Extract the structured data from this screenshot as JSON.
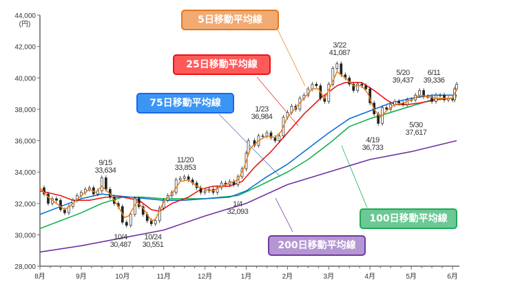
{
  "chart_data": {
    "type": "line",
    "title": "",
    "ylabel": "(円)",
    "xlabel": "",
    "ylim": [
      28000,
      44000
    ],
    "yticks": [
      "28,000",
      "30,000",
      "32,000",
      "34,000",
      "36,000",
      "38,000",
      "40,000",
      "42,000",
      "44,000"
    ],
    "ytick_values": [
      28000,
      30000,
      32000,
      34000,
      36000,
      38000,
      40000,
      42000,
      44000
    ],
    "xlim": [
      0,
      10.1
    ],
    "xticks": [
      "8月",
      "9月",
      "10月",
      "11月",
      "12月",
      "1月",
      "2月",
      "3月",
      "4月",
      "5月",
      "6月"
    ],
    "grid": false,
    "price": [
      [
        0,
        33000
      ],
      [
        0.1,
        32600
      ],
      [
        0.2,
        32000
      ],
      [
        0.3,
        32300
      ],
      [
        0.4,
        32200
      ],
      [
        0.5,
        31600
      ],
      [
        0.6,
        31400
      ],
      [
        0.7,
        31800
      ],
      [
        0.8,
        32200
      ],
      [
        0.9,
        32500
      ],
      [
        1.0,
        32700
      ],
      [
        1.1,
        32900
      ],
      [
        1.2,
        33000
      ],
      [
        1.3,
        32600
      ],
      [
        1.4,
        32800
      ],
      [
        1.5,
        33634
      ],
      [
        1.6,
        32900
      ],
      [
        1.7,
        32400
      ],
      [
        1.8,
        32000
      ],
      [
        1.9,
        31800
      ],
      [
        2.0,
        30800
      ],
      [
        2.1,
        30600
      ],
      [
        2.2,
        31300
      ],
      [
        2.3,
        32300
      ],
      [
        2.4,
        31800
      ],
      [
        2.5,
        31300
      ],
      [
        2.6,
        30900
      ],
      [
        2.7,
        30700
      ],
      [
        2.8,
        30900
      ],
      [
        2.9,
        31700
      ],
      [
        3.0,
        32200
      ],
      [
        3.1,
        32500
      ],
      [
        3.2,
        32700
      ],
      [
        3.3,
        33500
      ],
      [
        3.4,
        33600
      ],
      [
        3.5,
        33700
      ],
      [
        3.6,
        33500
      ],
      [
        3.7,
        33300
      ],
      [
        3.8,
        33000
      ],
      [
        3.9,
        32700
      ],
      [
        4.0,
        32800
      ],
      [
        4.1,
        32900
      ],
      [
        4.2,
        32700
      ],
      [
        4.3,
        33000
      ],
      [
        4.4,
        33300
      ],
      [
        4.5,
        33200
      ],
      [
        4.6,
        33400
      ],
      [
        4.7,
        33200
      ],
      [
        4.8,
        33700
      ],
      [
        4.9,
        34200
      ],
      [
        5.0,
        35200
      ],
      [
        5.05,
        36000
      ],
      [
        5.2,
        35700
      ],
      [
        5.3,
        36300
      ],
      [
        5.4,
        36300
      ],
      [
        5.5,
        36500
      ],
      [
        5.6,
        36200
      ],
      [
        5.7,
        36000
      ],
      [
        5.8,
        36300
      ],
      [
        5.9,
        37500
      ],
      [
        6.0,
        37800
      ],
      [
        6.1,
        38200
      ],
      [
        6.2,
        38000
      ],
      [
        6.3,
        38700
      ],
      [
        6.4,
        38900
      ],
      [
        6.5,
        39300
      ],
      [
        6.6,
        39600
      ],
      [
        6.7,
        39500
      ],
      [
        6.8,
        38700
      ],
      [
        6.9,
        38500
      ],
      [
        7.0,
        39600
      ],
      [
        7.1,
        40600
      ],
      [
        7.2,
        40900
      ],
      [
        7.3,
        40200
      ],
      [
        7.4,
        40000
      ],
      [
        7.5,
        39600
      ],
      [
        7.6,
        39200
      ],
      [
        7.7,
        39600
      ],
      [
        7.8,
        39500
      ],
      [
        7.9,
        39300
      ],
      [
        8.0,
        38400
      ],
      [
        8.1,
        37700
      ],
      [
        8.2,
        37100
      ],
      [
        8.3,
        38100
      ],
      [
        8.4,
        38000
      ],
      [
        8.5,
        38300
      ],
      [
        8.6,
        38500
      ],
      [
        8.7,
        38400
      ],
      [
        8.8,
        38300
      ],
      [
        8.9,
        38600
      ],
      [
        9.0,
        38600
      ],
      [
        9.1,
        38900
      ],
      [
        9.2,
        39200
      ],
      [
        9.3,
        38800
      ],
      [
        9.4,
        38800
      ],
      [
        9.5,
        38500
      ],
      [
        9.6,
        38900
      ],
      [
        9.7,
        38900
      ],
      [
        9.8,
        38600
      ],
      [
        9.9,
        38700
      ],
      [
        10.0,
        38600
      ],
      [
        10.05,
        39300
      ],
      [
        10.1,
        39600
      ]
    ],
    "series": [
      {
        "name": "5日移動平均線",
        "color": "#e8821e",
        "points": [
          [
            0,
            33000
          ],
          [
            0.2,
            32400
          ],
          [
            0.5,
            31800
          ],
          [
            0.6,
            31600
          ],
          [
            0.8,
            32000
          ],
          [
            1.0,
            32500
          ],
          [
            1.2,
            32900
          ],
          [
            1.35,
            32700
          ],
          [
            1.5,
            33100
          ],
          [
            1.7,
            32600
          ],
          [
            1.9,
            31800
          ],
          [
            2.05,
            31100
          ],
          [
            2.15,
            31200
          ],
          [
            2.35,
            32100
          ],
          [
            2.5,
            31700
          ],
          [
            2.7,
            30900
          ],
          [
            2.8,
            31000
          ],
          [
            3.0,
            32100
          ],
          [
            3.2,
            32600
          ],
          [
            3.4,
            33400
          ],
          [
            3.6,
            33500
          ],
          [
            3.8,
            33100
          ],
          [
            4.0,
            32900
          ],
          [
            4.2,
            32800
          ],
          [
            4.4,
            33100
          ],
          [
            4.6,
            33300
          ],
          [
            4.8,
            33500
          ],
          [
            4.95,
            34300
          ],
          [
            5.1,
            35500
          ],
          [
            5.3,
            36000
          ],
          [
            5.5,
            36300
          ],
          [
            5.7,
            36200
          ],
          [
            5.85,
            36600
          ],
          [
            6.0,
            37500
          ],
          [
            6.2,
            38100
          ],
          [
            6.4,
            38700
          ],
          [
            6.6,
            39300
          ],
          [
            6.75,
            39300
          ],
          [
            6.9,
            38700
          ],
          [
            7.05,
            39500
          ],
          [
            7.2,
            40400
          ],
          [
            7.4,
            40000
          ],
          [
            7.6,
            39500
          ],
          [
            7.8,
            39500
          ],
          [
            7.95,
            39000
          ],
          [
            8.1,
            38000
          ],
          [
            8.25,
            37500
          ],
          [
            8.4,
            37900
          ],
          [
            8.6,
            38300
          ],
          [
            8.8,
            38400
          ],
          [
            9.0,
            38600
          ],
          [
            9.2,
            38900
          ],
          [
            9.4,
            38800
          ],
          [
            9.6,
            38700
          ],
          [
            9.8,
            38700
          ],
          [
            10.0,
            38700
          ],
          [
            10.1,
            39300
          ]
        ]
      },
      {
        "name": "25日移動平均線",
        "color": "#ee1111",
        "points": [
          [
            0,
            32800
          ],
          [
            0.5,
            32500
          ],
          [
            0.8,
            32200
          ],
          [
            1.2,
            32200
          ],
          [
            1.6,
            32400
          ],
          [
            2.0,
            32400
          ],
          [
            2.4,
            32200
          ],
          [
            2.7,
            31600
          ],
          [
            2.9,
            31500
          ],
          [
            3.2,
            32000
          ],
          [
            3.6,
            32400
          ],
          [
            3.9,
            32900
          ],
          [
            4.2,
            33100
          ],
          [
            4.6,
            33100
          ],
          [
            4.9,
            33400
          ],
          [
            5.2,
            34300
          ],
          [
            5.6,
            35300
          ],
          [
            6.0,
            36500
          ],
          [
            6.4,
            37700
          ],
          [
            6.8,
            38700
          ],
          [
            7.2,
            39500
          ],
          [
            7.4,
            39700
          ],
          [
            7.8,
            39700
          ],
          [
            8.1,
            39200
          ],
          [
            8.4,
            38600
          ],
          [
            8.6,
            38300
          ],
          [
            8.9,
            38300
          ],
          [
            9.2,
            38400
          ],
          [
            9.6,
            38600
          ],
          [
            10.0,
            38700
          ],
          [
            10.1,
            38900
          ]
        ]
      },
      {
        "name": "75日移動平均線",
        "color": "#0a6fd0",
        "points": [
          [
            0,
            31300
          ],
          [
            0.5,
            31800
          ],
          [
            1.0,
            32300
          ],
          [
            1.5,
            32600
          ],
          [
            1.8,
            32500
          ],
          [
            2.2,
            32400
          ],
          [
            2.6,
            32300
          ],
          [
            3.0,
            32200
          ],
          [
            3.5,
            32200
          ],
          [
            4.0,
            32300
          ],
          [
            4.6,
            32400
          ],
          [
            5.0,
            32800
          ],
          [
            5.5,
            33700
          ],
          [
            6.0,
            34500
          ],
          [
            6.5,
            35500
          ],
          [
            7.0,
            36500
          ],
          [
            7.5,
            37400
          ],
          [
            8.0,
            37900
          ],
          [
            8.5,
            38400
          ],
          [
            9.0,
            38700
          ],
          [
            9.5,
            38900
          ],
          [
            10.0,
            38900
          ],
          [
            10.1,
            38900
          ]
        ]
      },
      {
        "name": "100日移動平均線",
        "color": "#12b050",
        "points": [
          [
            0,
            30400
          ],
          [
            0.5,
            30900
          ],
          [
            1.0,
            31400
          ],
          [
            1.5,
            32000
          ],
          [
            2.0,
            32400
          ],
          [
            2.5,
            32400
          ],
          [
            3.0,
            32300
          ],
          [
            4.0,
            32300
          ],
          [
            4.8,
            32500
          ],
          [
            5.3,
            33100
          ],
          [
            6.0,
            34000
          ],
          [
            6.5,
            34800
          ],
          [
            7.0,
            35800
          ],
          [
            7.5,
            36900
          ],
          [
            8.0,
            37400
          ],
          [
            8.5,
            37800
          ],
          [
            9.0,
            38200
          ],
          [
            9.5,
            38600
          ],
          [
            10.0,
            38700
          ],
          [
            10.1,
            38800
          ]
        ]
      },
      {
        "name": "200日移動平均線",
        "color": "#7030a0",
        "points": [
          [
            0,
            28900
          ],
          [
            1,
            29300
          ],
          [
            2,
            29800
          ],
          [
            3,
            30300
          ],
          [
            4,
            31200
          ],
          [
            5,
            32000
          ],
          [
            6,
            33200
          ],
          [
            7,
            34000
          ],
          [
            8,
            34800
          ],
          [
            9,
            35300
          ],
          [
            10.1,
            36000
          ]
        ]
      }
    ],
    "legend_boxes": [
      {
        "label": "5日移動平均線",
        "fill": "#f2aa72",
        "border": "#e07a20"
      },
      {
        "label": "25日移動平均線",
        "fill": "#ff5a5a",
        "border": "#ee1111"
      },
      {
        "label": "75日移動平均線",
        "fill": "#3a95f5",
        "border": "#1a66ee"
      },
      {
        "label": "100日移動平均線",
        "fill": "#6cc894",
        "border": "#1aaa55"
      },
      {
        "label": "200日移動平均線",
        "fill": "#b496d2",
        "border": "#7038a0"
      }
    ],
    "annotations": [
      {
        "date": "9/15",
        "value": "33,634"
      },
      {
        "date": "10/4",
        "value": "30,487"
      },
      {
        "date": "10/24",
        "value": "30,551"
      },
      {
        "date": "11/20",
        "value": "33,853"
      },
      {
        "date": "1/4",
        "value": "32,093"
      },
      {
        "date": "1/23",
        "value": "36,984"
      },
      {
        "date": "3/22",
        "value": "41,087"
      },
      {
        "date": "4/19",
        "value": "36,733"
      },
      {
        "date": "5/20",
        "value": "39,437"
      },
      {
        "date": "5/30",
        "value": "37,617"
      },
      {
        "date": "6/11",
        "value": "39,336"
      }
    ]
  }
}
